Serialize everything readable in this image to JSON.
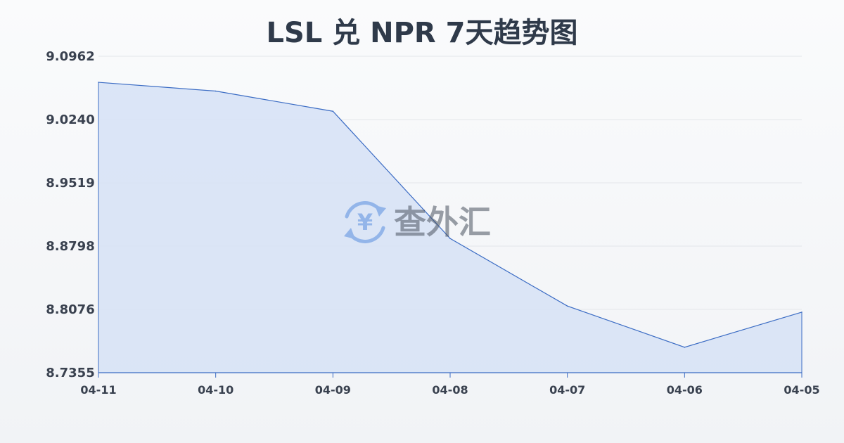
{
  "chart_data": {
    "type": "area",
    "title": "LSL 兑 NPR 7天趋势图",
    "x": [
      "04-11",
      "04-10",
      "04-09",
      "04-08",
      "04-07",
      "04-06",
      "04-05"
    ],
    "series": [
      {
        "values": [
          9.0665,
          9.0565,
          9.0335,
          8.8885,
          8.8115,
          8.7645,
          8.8045
        ]
      }
    ],
    "yticks": [
      "9.0962",
      "9.0240",
      "8.9519",
      "8.8798",
      "8.8076",
      "8.7355"
    ],
    "ylim": [
      8.7355,
      9.0962
    ],
    "xlabel": "",
    "ylabel": "",
    "grid": true,
    "legend": "none"
  },
  "watermark": {
    "text": "查外汇",
    "icon": "yuan-exchange-icon"
  },
  "colors": {
    "line": "#3b6cc4",
    "fill": "#d6e2f6",
    "grid": "#e3e6ea",
    "title": "#2f3a4a",
    "tick": "#39414f",
    "watermark": "#4a5260",
    "watermark_icon": "#5a8fe0"
  }
}
